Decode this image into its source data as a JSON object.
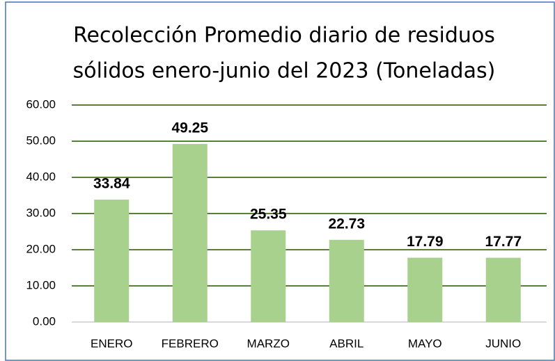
{
  "chart_data": {
    "type": "bar",
    "title": [
      "Recolección Promedio diario de residuos",
      "sólidos enero-junio del 2023 (Toneladas)"
    ],
    "categories": [
      "ENERO",
      "FEBRERO",
      "MARZO",
      "ABRIL",
      "MAYO",
      "JUNIO"
    ],
    "values": [
      33.84,
      49.25,
      25.35,
      22.73,
      17.79,
      17.77
    ],
    "color": "#a9d18e",
    "ylim": [
      0,
      60
    ],
    "yticks": [
      {
        "value": 0,
        "label": "0.00"
      },
      {
        "value": 10,
        "label": "10.00"
      },
      {
        "value": 20,
        "label": "20.00"
      },
      {
        "value": 30,
        "label": "30.00"
      },
      {
        "value": 40,
        "label": "40.00"
      },
      {
        "value": 50,
        "label": "50.00"
      },
      {
        "value": 60,
        "label": "60.00"
      }
    ],
    "grid": true
  }
}
